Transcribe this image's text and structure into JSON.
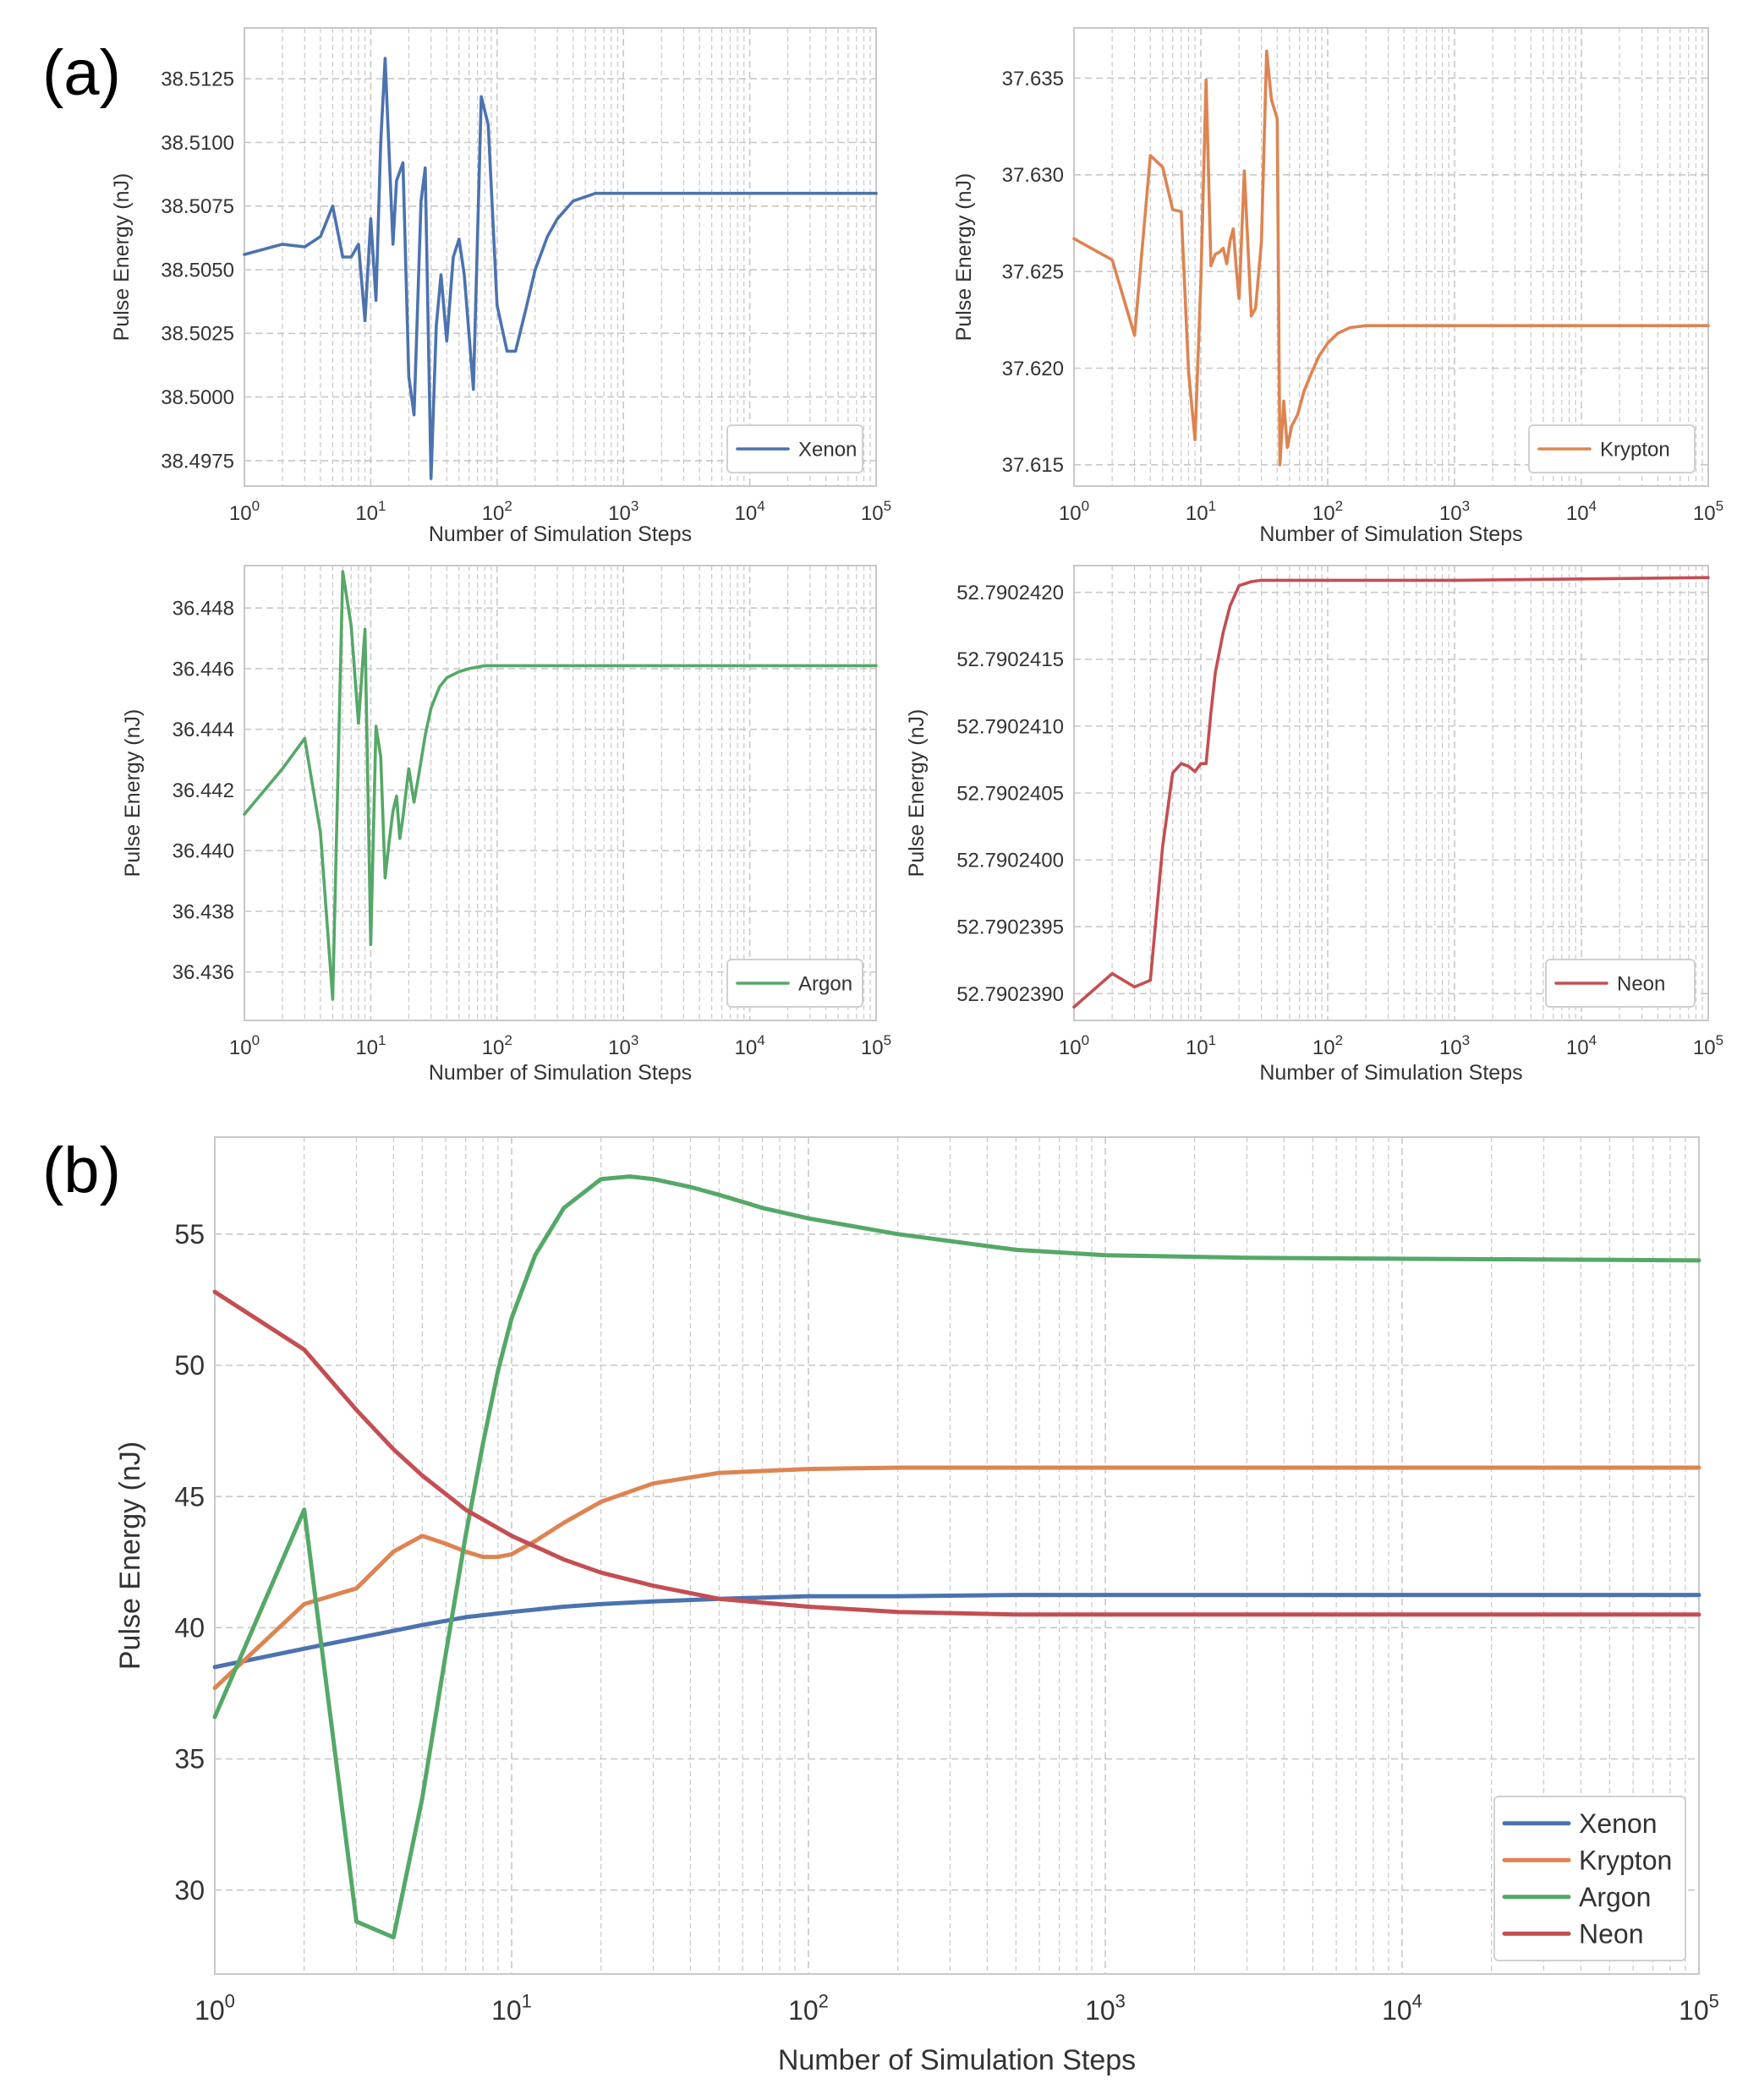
{
  "panel_labels": [
    "(a)",
    "(b)"
  ],
  "colors": {
    "Xenon": "#4c72b0",
    "Krypton": "#dd8452",
    "Argon": "#55a868",
    "Neon": "#c44e52",
    "grid": "#c8c8c8",
    "frame": "#c8c8c8"
  },
  "chart_data": [
    {
      "type": "line",
      "panel": "(a)",
      "xscale": "log",
      "xlim": [
        1,
        100000
      ],
      "xticks": [
        "10^0",
        "10^1",
        "10^2",
        "10^3",
        "10^4",
        "10^5"
      ],
      "xlabel": "Number of Simulation Steps",
      "ylabel": "Pulse Energy (nJ)",
      "ylim": [
        38.4965,
        38.5145
      ],
      "yticks": [
        "38.4975",
        "38.5000",
        "38.5025",
        "38.5050",
        "38.5075",
        "38.5100",
        "38.5125"
      ],
      "ytick_values": [
        38.4975,
        38.5,
        38.5025,
        38.505,
        38.5075,
        38.51,
        38.5125
      ],
      "grid": true,
      "legend": "bottom-right",
      "series": [
        {
          "name": "Xenon",
          "x": [
            1,
            2,
            3,
            4,
            5,
            6,
            7,
            8,
            9,
            10,
            11,
            12,
            13,
            15,
            16,
            18,
            20,
            22,
            25,
            27,
            30,
            33,
            36,
            40,
            45,
            50,
            55,
            65,
            75,
            85,
            100,
            120,
            140,
            170,
            200,
            250,
            300,
            400,
            600,
            1000,
            100000
          ],
          "y": [
            38.5056,
            38.506,
            38.5059,
            38.5063,
            38.5075,
            38.5055,
            38.5055,
            38.506,
            38.503,
            38.507,
            38.5038,
            38.51,
            38.5133,
            38.506,
            38.5085,
            38.5092,
            38.5008,
            38.4993,
            38.5077,
            38.509,
            38.4968,
            38.5028,
            38.5048,
            38.5022,
            38.5055,
            38.5062,
            38.5048,
            38.5003,
            38.5118,
            38.5107,
            38.5036,
            38.5018,
            38.5018,
            38.5035,
            38.505,
            38.5063,
            38.507,
            38.5077,
            38.508,
            38.508,
            38.508
          ]
        }
      ]
    },
    {
      "type": "line",
      "panel": "(a)",
      "xscale": "log",
      "xlim": [
        1,
        100000
      ],
      "xticks": [
        "10^0",
        "10^1",
        "10^2",
        "10^3",
        "10^4",
        "10^5"
      ],
      "xlabel": "Number of Simulation Steps",
      "ylabel": "Pulse Energy (nJ)",
      "ylim": [
        37.6139,
        37.6376
      ],
      "yticks": [
        "37.615",
        "37.620",
        "37.625",
        "37.630",
        "37.635"
      ],
      "ytick_values": [
        37.615,
        37.62,
        37.625,
        37.63,
        37.635
      ],
      "grid": true,
      "legend": "bottom-right",
      "series": [
        {
          "name": "Krypton",
          "x": [
            1,
            2,
            3,
            4,
            5,
            6,
            7,
            8,
            9,
            10,
            11,
            12,
            13,
            14,
            15,
            16,
            17,
            18,
            19,
            20,
            22,
            25,
            27,
            30,
            33,
            36,
            40,
            42,
            45,
            48,
            52,
            58,
            65,
            75,
            85,
            100,
            120,
            150,
            200,
            300,
            500,
            100000
          ],
          "y": [
            37.6267,
            37.6256,
            37.6217,
            37.631,
            37.6304,
            37.6282,
            37.6281,
            37.6198,
            37.6163,
            37.6245,
            37.6349,
            37.6253,
            37.6259,
            37.626,
            37.6262,
            37.6254,
            37.6266,
            37.6272,
            37.6252,
            37.6236,
            37.6302,
            37.6227,
            37.6231,
            37.6265,
            37.6364,
            37.6339,
            37.6329,
            37.615,
            37.6183,
            37.6159,
            37.617,
            37.6176,
            37.6188,
            37.6198,
            37.6206,
            37.6213,
            37.6218,
            37.6221,
            37.6222,
            37.6222,
            37.6222,
            37.6222
          ]
        }
      ]
    },
    {
      "type": "line",
      "panel": "(a)",
      "xscale": "log",
      "xlim": [
        1,
        100000
      ],
      "xticks": [
        "10^0",
        "10^1",
        "10^2",
        "10^3",
        "10^4",
        "10^5"
      ],
      "xlabel": "Number of Simulation Steps",
      "ylabel": "Pulse Energy (nJ)",
      "ylim": [
        36.4344,
        36.4494
      ],
      "yticks": [
        "36.436",
        "36.438",
        "36.440",
        "36.442",
        "36.444",
        "36.446",
        "36.448"
      ],
      "ytick_values": [
        36.436,
        36.438,
        36.44,
        36.442,
        36.444,
        36.446,
        36.448
      ],
      "grid": true,
      "legend": "bottom-right",
      "series": [
        {
          "name": "Argon",
          "x": [
            1,
            2,
            3,
            4,
            5,
            6,
            7,
            8,
            9,
            10,
            11,
            12,
            13,
            14,
            15,
            16,
            17,
            18,
            20,
            22,
            24,
            27,
            30,
            35,
            40,
            50,
            60,
            80,
            100,
            150,
            200,
            500,
            100000
          ],
          "y": [
            36.4412,
            36.4427,
            36.4437,
            36.4406,
            36.4351,
            36.4492,
            36.4474,
            36.4442,
            36.4473,
            36.4369,
            36.4441,
            36.4431,
            36.4391,
            36.4403,
            36.4413,
            36.4418,
            36.4404,
            36.4411,
            36.4427,
            36.4416,
            36.4425,
            36.4438,
            36.4447,
            36.4454,
            36.4457,
            36.4459,
            36.446,
            36.4461,
            36.4461,
            36.4461,
            36.4461,
            36.4461,
            36.4461
          ]
        }
      ]
    },
    {
      "type": "line",
      "panel": "(a)",
      "xscale": "log",
      "xlim": [
        1,
        100000
      ],
      "xticks": [
        "10^0",
        "10^1",
        "10^2",
        "10^3",
        "10^4",
        "10^5"
      ],
      "xlabel": "Number of Simulation Steps",
      "ylabel": "Pulse Energy (nJ)",
      "ylim": [
        52.7902388,
        52.7902422
      ],
      "yticks": [
        "52.7902390",
        "52.7902395",
        "52.7902400",
        "52.7902405",
        "52.7902410",
        "52.7902415",
        "52.7902420"
      ],
      "ytick_values": [
        52.790239,
        52.7902395,
        52.79024,
        52.7902405,
        52.790241,
        52.7902415,
        52.790242
      ],
      "grid": true,
      "legend": "bottom-right",
      "series": [
        {
          "name": "Neon",
          "x": [
            1,
            2,
            3,
            4,
            5,
            6,
            7,
            8,
            9,
            10,
            11,
            12,
            13,
            15,
            17,
            20,
            25,
            30,
            50,
            100,
            1000,
            10000,
            100000
          ],
          "y": [
            52.7902389,
            52.79023915,
            52.79023905,
            52.7902391,
            52.7902401,
            52.79024065,
            52.79024072,
            52.7902407,
            52.79024066,
            52.79024072,
            52.79024072,
            52.7902411,
            52.7902414,
            52.7902417,
            52.7902419,
            52.79024205,
            52.79024208,
            52.79024209,
            52.79024209,
            52.79024209,
            52.79024209,
            52.7902421,
            52.79024211
          ]
        }
      ]
    },
    {
      "type": "line",
      "panel": "(b)",
      "xscale": "log",
      "xlim": [
        1,
        100000
      ],
      "xticks": [
        "10^0",
        "10^1",
        "10^2",
        "10^3",
        "10^4",
        "10^5"
      ],
      "xlabel": "Number of Simulation Steps",
      "ylabel": "Pulse Energy (nJ)",
      "ylim": [
        26.8,
        58.7
      ],
      "yticks": [
        "30",
        "35",
        "40",
        "45",
        "50",
        "55"
      ],
      "ytick_values": [
        30,
        35,
        40,
        45,
        50,
        55
      ],
      "grid": true,
      "legend": "bottom-right",
      "series": [
        {
          "name": "Xenon",
          "x": [
            1,
            2,
            3,
            5,
            7,
            10,
            15,
            20,
            30,
            50,
            100,
            200,
            500,
            1000,
            100000
          ],
          "y": [
            38.5,
            39.2,
            39.6,
            40.1,
            40.4,
            40.6,
            40.8,
            40.9,
            41.0,
            41.1,
            41.2,
            41.2,
            41.25,
            41.25,
            41.25
          ]
        },
        {
          "name": "Krypton",
          "x": [
            1,
            2,
            3,
            4,
            5,
            6,
            7,
            8,
            9,
            10,
            12,
            15,
            20,
            30,
            50,
            100,
            200,
            500,
            1000,
            100000
          ],
          "y": [
            37.7,
            40.9,
            41.5,
            42.9,
            43.5,
            43.2,
            42.9,
            42.7,
            42.7,
            42.8,
            43.3,
            44.0,
            44.8,
            45.5,
            45.9,
            46.05,
            46.1,
            46.1,
            46.1,
            46.1
          ]
        },
        {
          "name": "Argon",
          "x": [
            1,
            2,
            3,
            4,
            5,
            6,
            7,
            8,
            9,
            10,
            12,
            15,
            20,
            25,
            30,
            40,
            50,
            70,
            100,
            200,
            500,
            1000,
            3000,
            100000
          ],
          "y": [
            36.6,
            44.5,
            28.8,
            28.2,
            33.5,
            39.0,
            43.5,
            47.0,
            49.8,
            51.8,
            54.2,
            56.0,
            57.1,
            57.2,
            57.1,
            56.8,
            56.5,
            56.0,
            55.6,
            55.0,
            54.4,
            54.2,
            54.1,
            54.0
          ]
        },
        {
          "name": "Neon",
          "x": [
            1,
            2,
            3,
            4,
            5,
            7,
            10,
            15,
            20,
            30,
            50,
            100,
            200,
            500,
            1000,
            100000
          ],
          "y": [
            52.8,
            50.6,
            48.3,
            46.8,
            45.8,
            44.5,
            43.5,
            42.6,
            42.1,
            41.6,
            41.1,
            40.8,
            40.6,
            40.5,
            40.5,
            40.5
          ]
        }
      ]
    }
  ]
}
